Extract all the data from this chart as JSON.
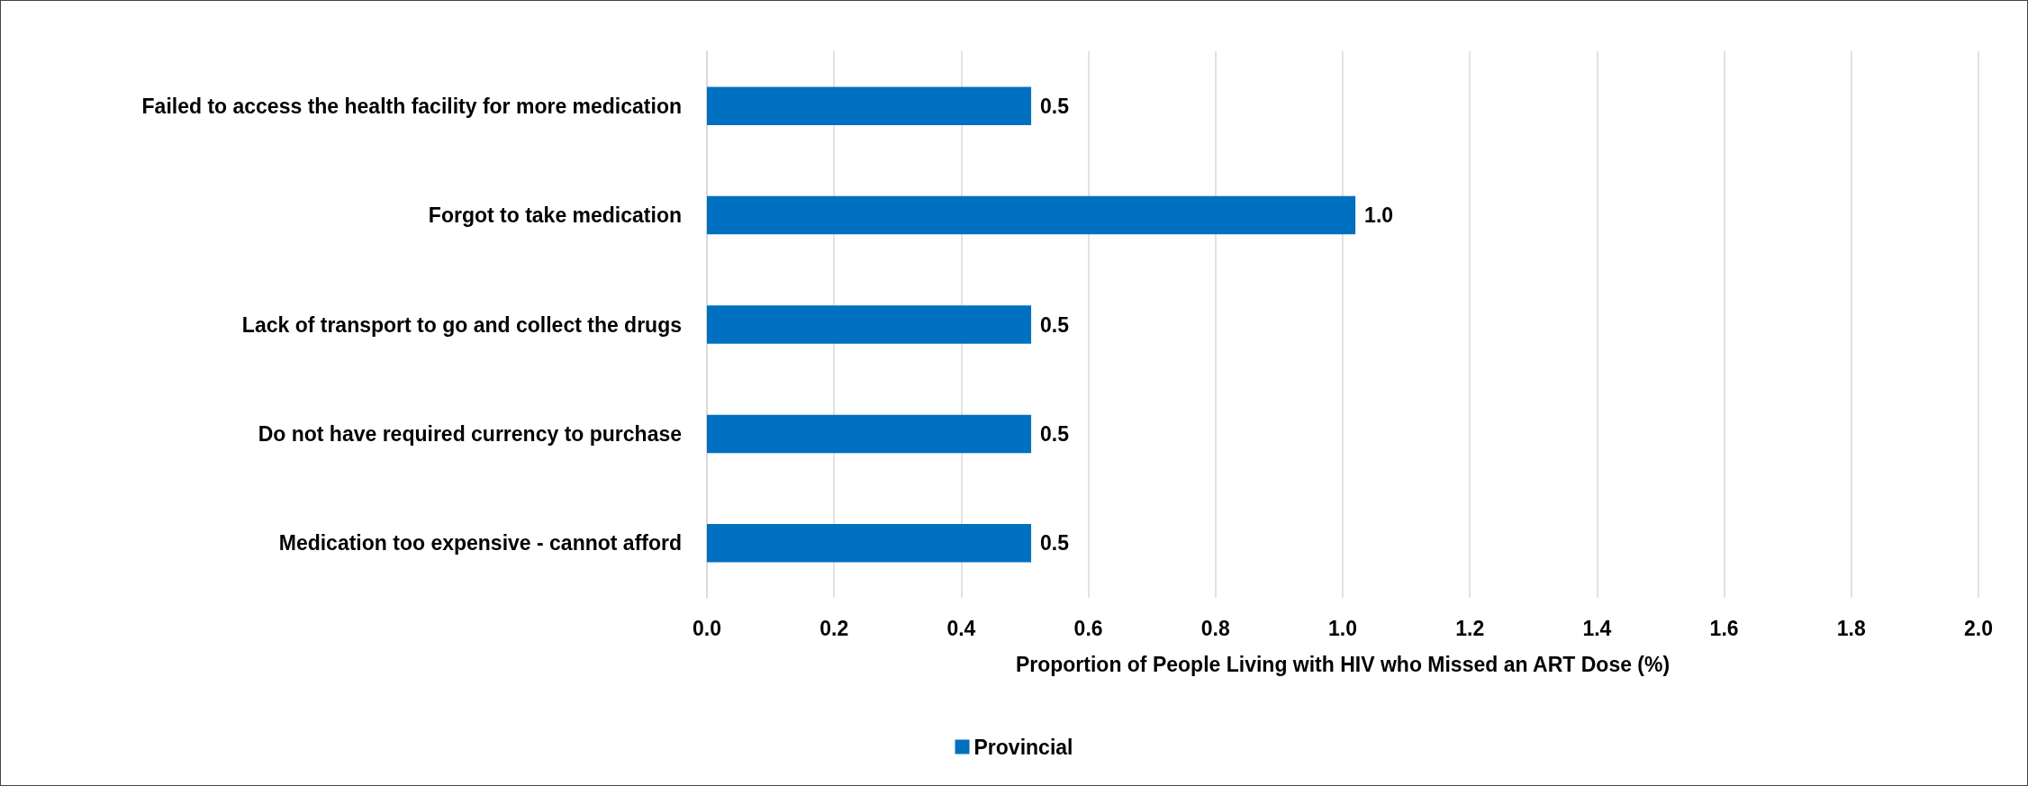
{
  "chart_data": {
    "type": "bar",
    "orientation": "horizontal",
    "xlabel": "Proportion of People Living with HIV who Missed an ART Dose (%)",
    "categories": [
      "Failed to access the health facility for more medication",
      "Forgot to take medication",
      "Lack of transport to go and collect the drugs",
      "Do not have required currency to purchase",
      "Medication too expensive - cannot afford"
    ],
    "series": [
      {
        "name": "Provincial",
        "color": "#0070c0",
        "values": [
          0.51,
          1.02,
          0.51,
          0.51,
          0.51
        ],
        "value_labels": [
          "0.5",
          "1.0",
          "0.5",
          "0.5",
          "0.5"
        ]
      }
    ],
    "xlim": [
      0,
      2
    ],
    "xticks": [
      {
        "value": 0,
        "label": "0.0"
      },
      0.2,
      0.4,
      0.6,
      0.8,
      {
        "value": 1,
        "label": "1.0"
      },
      1.2,
      1.4,
      1.6,
      1.8,
      {
        "value": 2,
        "label": "2.0"
      }
    ],
    "grid": "x",
    "legend": "bottom"
  }
}
